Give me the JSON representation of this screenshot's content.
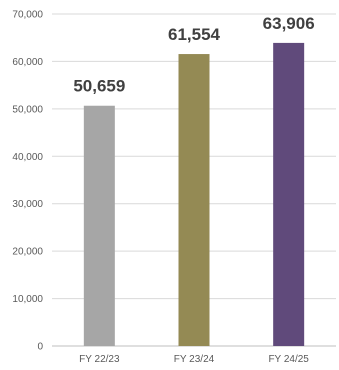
{
  "chart_data": {
    "type": "bar",
    "title": "",
    "xlabel": "",
    "ylabel": "",
    "categories": [
      "FY 22/23",
      "FY 23/24",
      "FY 24/25"
    ],
    "values": [
      50659,
      61554,
      63906
    ],
    "value_labels": [
      "50,659",
      "61,554",
      "63,906"
    ],
    "colors": [
      "#a6a6a6",
      "#948a54",
      "#604a7b"
    ],
    "ylim": [
      0,
      70000
    ],
    "y_ticks": [
      0,
      10000,
      20000,
      30000,
      40000,
      50000,
      60000,
      70000
    ],
    "y_tick_labels": [
      "0",
      "10,000",
      "20,000",
      "30,000",
      "40,000",
      "50,000",
      "60,000",
      "70,000"
    ],
    "grid": true,
    "legend": "none"
  }
}
